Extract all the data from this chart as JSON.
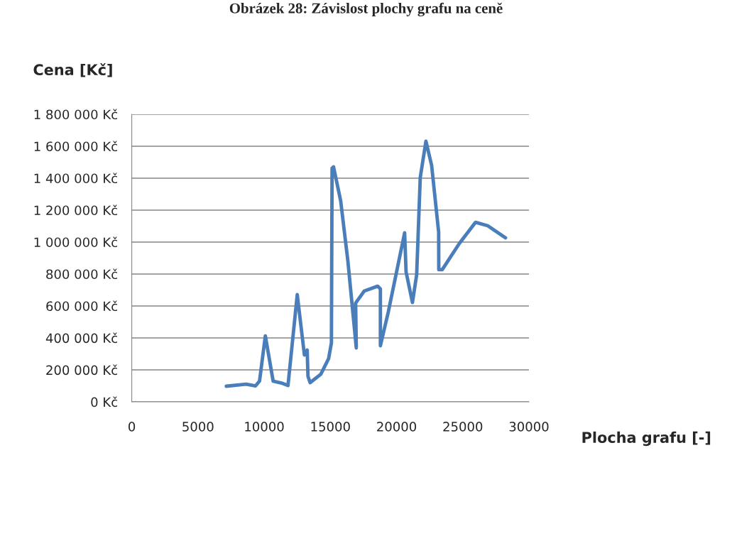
{
  "chart_data": {
    "type": "line",
    "title": "Obrázek 28: Závislost plochy grafu na ceně",
    "xlabel": "Plocha grafu [-]",
    "ylabel": "Cena [Kč]",
    "x": [
      7140,
      8640,
      9350,
      9650,
      10090,
      10680,
      11380,
      11800,
      12500,
      13040,
      13250,
      13310,
      13470,
      14280,
      14870,
      15080,
      15130,
      15240,
      15780,
      16320,
      16960,
      16910,
      17550,
      18570,
      18780,
      18780,
      19370,
      20610,
      20720,
      21200,
      21520,
      21790,
      22220,
      22650,
      23180,
      23190,
      23450,
      24740,
      25970,
      26890,
      28230
    ],
    "series": [
      {
        "color": "#4a7ebb",
        "values": [
          98000,
          111000,
          100000,
          130000,
          413000,
          129000,
          116000,
          102000,
          671000,
          293000,
          324000,
          160000,
          120000,
          173000,
          271000,
          369000,
          1462000,
          1471000,
          1258000,
          884000,
          338000,
          618000,
          693000,
          724000,
          707000,
          351000,
          560000,
          1058000,
          813000,
          622000,
          796000,
          1404000,
          1631000,
          1480000,
          1062000,
          827000,
          827000,
          991000,
          1124000,
          1102000,
          1027000
        ]
      }
    ],
    "xlim": [
      0,
      30000
    ],
    "ylim": [
      0,
      1800000
    ],
    "xticks": [
      0,
      5000,
      10000,
      15000,
      20000,
      25000,
      30000
    ],
    "yticks": [
      {
        "value": 0,
        "label": "0 Kč"
      },
      {
        "value": 200000,
        "label": "200 000 Kč"
      },
      {
        "value": 400000,
        "label": "400 000 Kč"
      },
      {
        "value": 600000,
        "label": "600 000 Kč"
      },
      {
        "value": 800000,
        "label": "800 000 Kč"
      },
      {
        "value": 1000000,
        "label": "1 000 000 Kč"
      },
      {
        "value": 1200000,
        "label": "1 200 000 Kč"
      },
      {
        "value": 1400000,
        "label": "1 400 000 Kč"
      },
      {
        "value": 1600000,
        "label": "1 600 000 Kč"
      },
      {
        "value": 1800000,
        "label": "1 800 000 Kč"
      }
    ],
    "grid": "y",
    "marker": "none",
    "line_style": "solid"
  }
}
